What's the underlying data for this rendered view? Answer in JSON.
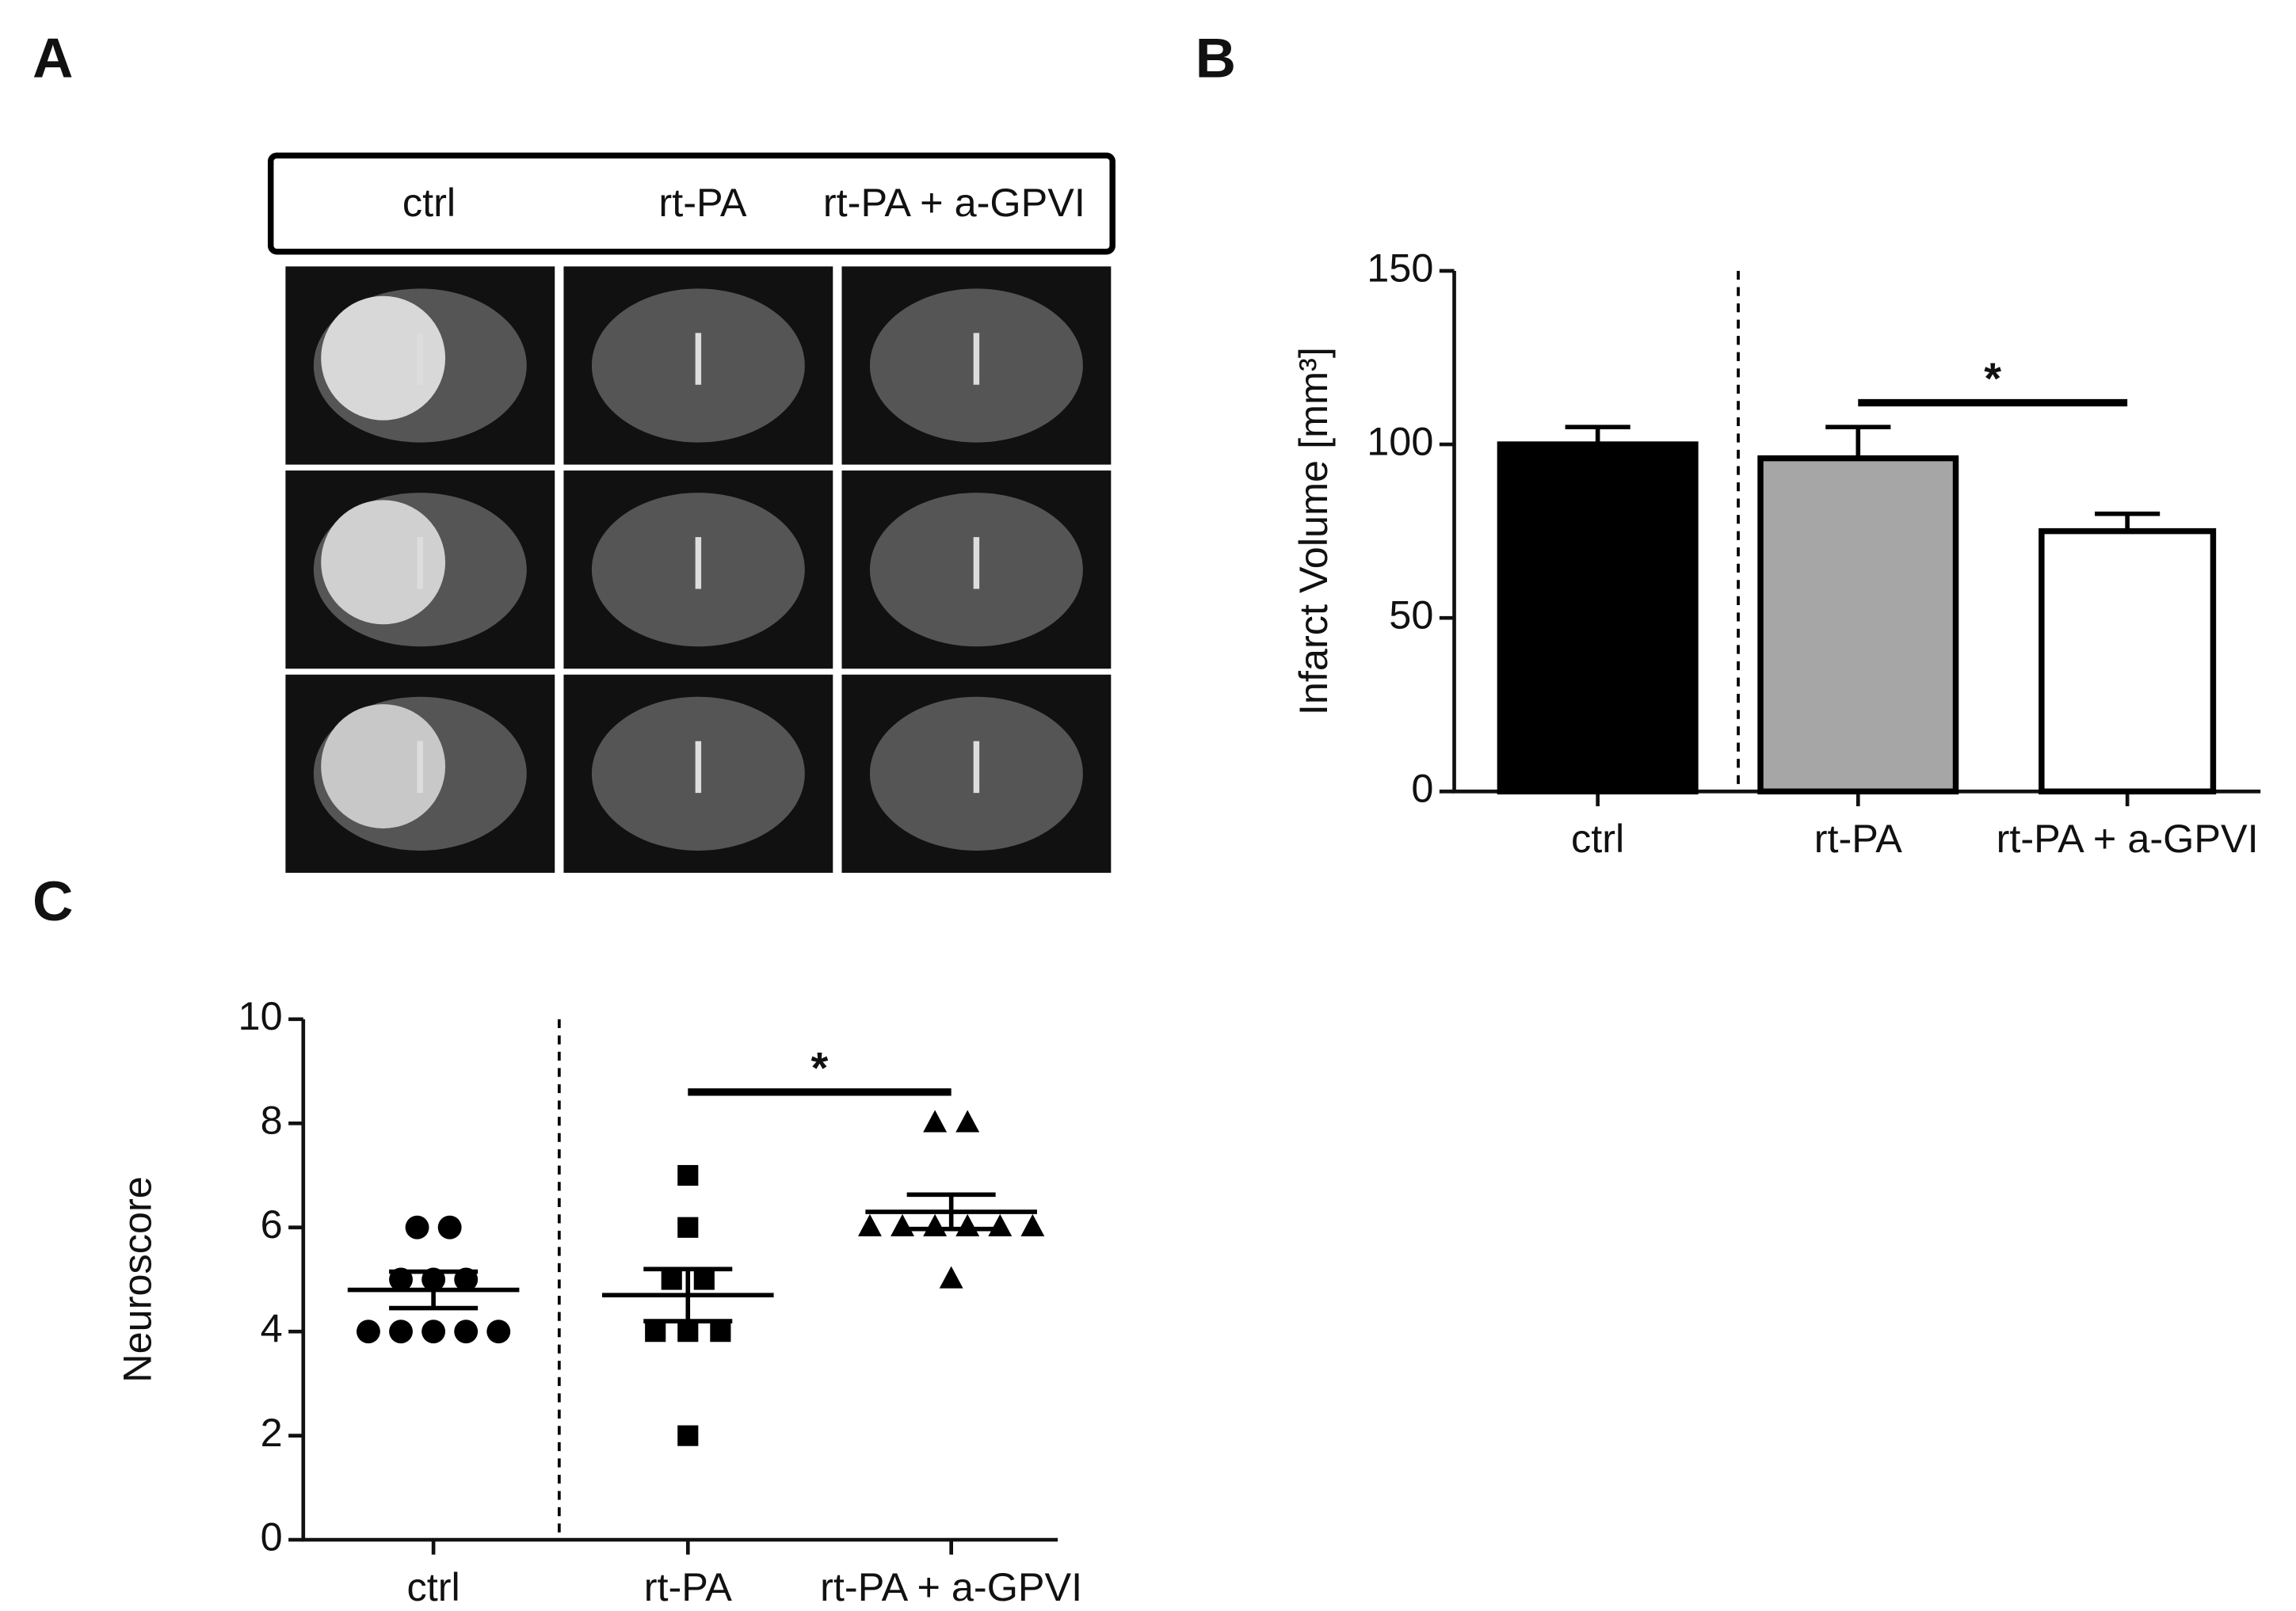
{
  "panel_labels": [
    "A",
    "B",
    "C"
  ],
  "images": {
    "columns": [
      "ctrl",
      "rt-PA",
      "rt-PA + a-GPVI"
    ]
  },
  "chart_data": [
    {
      "type": "bar",
      "ylabel": "Infarct Volume [mm³]",
      "categories": [
        "ctrl",
        "rt-PA",
        "rt-PA + a-GPVI"
      ],
      "values": [
        100,
        96,
        75
      ],
      "errors": [
        5,
        9,
        5
      ],
      "colors": [
        "#000000",
        "#a6a6a6",
        "#ffffff"
      ],
      "ylim": [
        0,
        150
      ],
      "yticks": [
        0,
        50,
        100,
        150
      ],
      "significance": {
        "label": "*",
        "between": [
          1,
          2
        ],
        "y": 112
      }
    },
    {
      "type": "strip",
      "ylabel": "Neuroscore",
      "categories": [
        "ctrl",
        "rt-PA",
        "rt-PA + a-GPVI"
      ],
      "markers": [
        "circle",
        "square",
        "triangle"
      ],
      "groups": [
        [
          6,
          6,
          5,
          5,
          5,
          4,
          4,
          4,
          4,
          4
        ],
        [
          7,
          6,
          5,
          5,
          4,
          4,
          4,
          2
        ],
        [
          8,
          8,
          6,
          6,
          6,
          6,
          6,
          6,
          5
        ]
      ],
      "means": [
        4.8,
        4.7,
        6.3
      ],
      "sems": [
        0.35,
        0.5,
        0.33
      ],
      "ylim": [
        0,
        10
      ],
      "yticks": [
        0,
        2,
        4,
        6,
        8,
        10
      ],
      "significance": {
        "label": "*",
        "between": [
          1,
          2
        ],
        "y": 8.6
      }
    }
  ]
}
